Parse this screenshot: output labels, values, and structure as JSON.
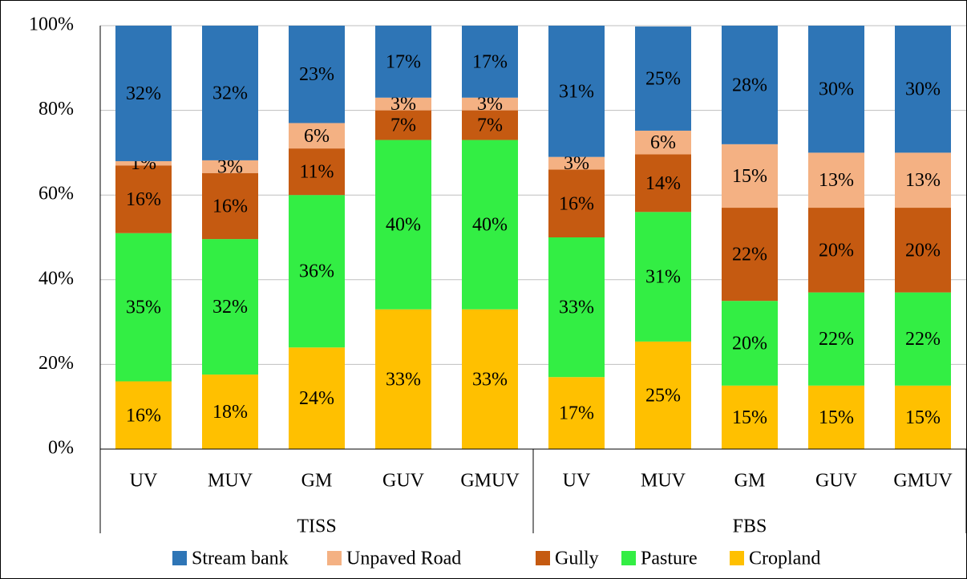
{
  "chart_data": {
    "type": "stacked_bar",
    "categories": [
      "UV",
      "MUV",
      "GM",
      "GUV",
      "GMUV",
      "UV",
      "MUV",
      "GM",
      "GUV",
      "GMUV"
    ],
    "groups": [
      {
        "name": "TISS",
        "size": 5
      },
      {
        "name": "FBS",
        "size": 5
      }
    ],
    "series": [
      {
        "name": "Cropland",
        "color": "#ffc000",
        "values": [
          16,
          17.6,
          24,
          33,
          33,
          17,
          25.4,
          15,
          15,
          15
        ],
        "value_labels": [
          "16%",
          "18%",
          "24%",
          "33%",
          "33%",
          "17%",
          "25%",
          "15%",
          "15%",
          "15%"
        ]
      },
      {
        "name": "Pasture",
        "color": "#33ee44",
        "values": [
          35,
          32,
          36,
          40,
          40,
          33,
          30.6,
          20,
          22,
          22
        ],
        "value_labels": [
          "35%",
          "32%",
          "36%",
          "40%",
          "40%",
          "33%",
          "31%",
          "20%",
          "22%",
          "22%"
        ]
      },
      {
        "name": "Gully",
        "color": "#c55a11",
        "values": [
          16,
          15.6,
          11,
          7,
          7,
          16,
          13.6,
          22,
          20,
          20
        ],
        "value_labels": [
          "16%",
          "16%",
          "11%",
          "7%",
          "7%",
          "16%",
          "14%",
          "22%",
          "20%",
          "20%"
        ]
      },
      {
        "name": "Unpaved Road",
        "color": "#f4b183",
        "values": [
          1,
          3,
          6,
          3,
          3,
          3,
          5.6,
          15,
          13,
          13
        ],
        "value_labels": [
          "1%",
          "3%",
          "6%",
          "3%",
          "3%",
          "3%",
          "6%",
          "15%",
          "13%",
          "13%"
        ]
      },
      {
        "name": "Stream bank",
        "color": "#2e75b6",
        "values": [
          32,
          31.8,
          23,
          17,
          17,
          31,
          24.6,
          28,
          30,
          30
        ],
        "value_labels": [
          "32%",
          "32%",
          "23%",
          "17%",
          "17%",
          "31%",
          "25%",
          "28%",
          "30%",
          "30%"
        ]
      }
    ],
    "ylim": [
      0,
      100
    ],
    "yticks": [
      {
        "value": 0,
        "label": "0%"
      },
      {
        "value": 20,
        "label": "20%"
      },
      {
        "value": 40,
        "label": "40%"
      },
      {
        "value": 60,
        "label": "60%"
      },
      {
        "value": 80,
        "label": "80%"
      },
      {
        "value": 100,
        "label": "100%"
      }
    ],
    "grid": true,
    "legend": "bottom"
  }
}
